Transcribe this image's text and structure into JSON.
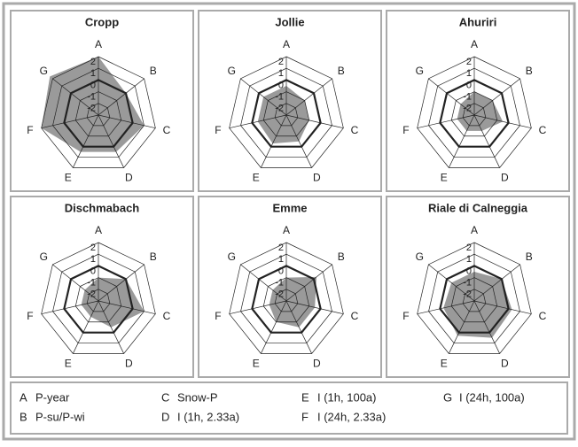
{
  "chart_data": [
    {
      "type": "radar",
      "title": "Cropp",
      "categories": [
        "A",
        "B",
        "C",
        "D",
        "E",
        "F",
        "G"
      ],
      "series": [
        {
          "color": "#9a9a9a",
          "values": [
            2,
            0,
            1,
            0.5,
            0.5,
            2,
            2.3
          ]
        }
      ],
      "rlim": [
        -3,
        2
      ],
      "rticks": [
        -2,
        -1,
        0,
        1,
        2
      ]
    },
    {
      "type": "radar",
      "title": "Jollie",
      "categories": [
        "A",
        "B",
        "C",
        "D",
        "E",
        "F",
        "G"
      ],
      "series": [
        {
          "color": "#9a9a9a",
          "values": [
            -0.5,
            -1,
            -1,
            -0.5,
            -0.3,
            -0.5,
            -0.5
          ]
        }
      ],
      "rlim": [
        -3,
        2
      ],
      "rticks": [
        -2,
        -1,
        0,
        1,
        2
      ]
    },
    {
      "type": "radar",
      "title": "Ahuriri",
      "categories": [
        "A",
        "B",
        "C",
        "D",
        "E",
        "F",
        "G"
      ],
      "series": [
        {
          "color": "#9a9a9a",
          "values": [
            -1,
            -1,
            -0.5,
            -1.5,
            -1.5,
            -1.5,
            -1.5
          ]
        }
      ],
      "rlim": [
        -3,
        2
      ],
      "rticks": [
        -2,
        -1,
        0,
        1,
        2
      ]
    },
    {
      "type": "radar",
      "title": "Dischmabach",
      "categories": [
        "A",
        "B",
        "C",
        "D",
        "E",
        "F",
        "G"
      ],
      "series": [
        {
          "color": "#9a9a9a",
          "values": [
            -1,
            0,
            1,
            -0.5,
            -1.5,
            -1.5,
            -1.5
          ]
        }
      ],
      "rlim": [
        -3,
        2
      ],
      "rticks": [
        -2,
        -1,
        0,
        1,
        2
      ]
    },
    {
      "type": "radar",
      "title": "Emme",
      "categories": [
        "A",
        "B",
        "C",
        "D",
        "E",
        "F",
        "G"
      ],
      "series": [
        {
          "color": "#9a9a9a",
          "values": [
            -1,
            0.3,
            -0.5,
            -0.5,
            -1,
            -1.5,
            -1.5
          ]
        }
      ],
      "rlim": [
        -3,
        2
      ],
      "rticks": [
        -2,
        -1,
        0,
        1,
        2
      ]
    },
    {
      "type": "radar",
      "title": "Riale di Calneggia",
      "categories": [
        "A",
        "B",
        "C",
        "D",
        "E",
        "F",
        "G"
      ],
      "series": [
        {
          "color": "#9a9a9a",
          "values": [
            -0.5,
            0,
            0.3,
            0.5,
            0.3,
            -0.3,
            -0.5
          ]
        }
      ],
      "rlim": [
        -3,
        2
      ],
      "rticks": [
        -2,
        -1,
        0,
        1,
        2
      ]
    }
  ],
  "legend": [
    {
      "key": "A",
      "label": "P-year"
    },
    {
      "key": "B",
      "label": "P-su/P-wi"
    },
    {
      "key": "C",
      "label": "Snow-P"
    },
    {
      "key": "D",
      "label": "I (1h, 2.33a)"
    },
    {
      "key": "E",
      "label": "I (1h, 100a)"
    },
    {
      "key": "F",
      "label": "I (24h, 2.33a)"
    },
    {
      "key": "G",
      "label": "I (24h, 100a)"
    }
  ]
}
